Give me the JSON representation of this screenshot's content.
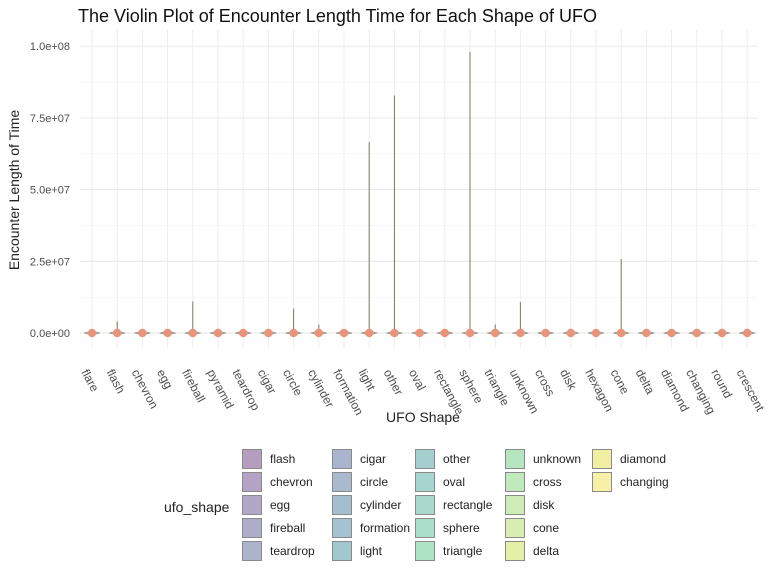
{
  "chart_data": {
    "type": "violin",
    "title": "The Violin Plot of Encounter Length Time for Each Shape of UFO",
    "xlabel": "UFO Shape",
    "ylabel": "Encounter Length of Time",
    "ylim": [
      -2000000,
      103000000
    ],
    "y_ticks": [
      {
        "value": 0,
        "label": "0.0e+00"
      },
      {
        "value": 25000000,
        "label": "2.5e+07"
      },
      {
        "value": 50000000,
        "label": "5.0e+07"
      },
      {
        "value": 75000000,
        "label": "7.5e+07"
      },
      {
        "value": 100000000,
        "label": "1.0e+08"
      }
    ],
    "grid": true,
    "categories": [
      "flare",
      "flash",
      "chevron",
      "egg",
      "fireball",
      "pyramid",
      "teardrop",
      "cigar",
      "circle",
      "cylinder",
      "formation",
      "light",
      "other",
      "oval",
      "rectangle",
      "sphere",
      "triangle",
      "unknown",
      "cross",
      "disk",
      "hexagon",
      "cone",
      "delta",
      "diamond",
      "changing",
      "round",
      "crescent"
    ],
    "max_values": [
      0,
      4000000,
      0,
      0,
      11000000,
      0,
      0,
      0,
      8500000,
      3000000,
      0,
      66500000,
      82800000,
      0,
      0,
      98000000,
      3000000,
      10800000,
      0,
      0,
      0,
      25800000,
      0,
      0,
      0,
      0,
      0
    ],
    "median_point_color": "#e8937a",
    "line_color": "#7a7a5a",
    "legend": {
      "title": "ufo_shape",
      "position": "bottom",
      "items": [
        {
          "label": "flash",
          "color": "#b59ebd"
        },
        {
          "label": "chevron",
          "color": "#b3a3c6"
        },
        {
          "label": "egg",
          "color": "#b1a7c8"
        },
        {
          "label": "fireball",
          "color": "#aeaccb"
        },
        {
          "label": "teardrop",
          "color": "#adb2cd"
        },
        {
          "label": "cigar",
          "color": "#aab5cd"
        },
        {
          "label": "circle",
          "color": "#a9b9ce"
        },
        {
          "label": "cylinder",
          "color": "#a5becf"
        },
        {
          "label": "formation",
          "color": "#a3c3d0"
        },
        {
          "label": "light",
          "color": "#a2c7cf"
        },
        {
          "label": "other",
          "color": "#a5cfcf"
        },
        {
          "label": "oval",
          "color": "#a6d4cf"
        },
        {
          "label": "rectangle",
          "color": "#a8d9cc"
        },
        {
          "label": "sphere",
          "color": "#aadfca"
        },
        {
          "label": "triangle",
          "color": "#aee3c6"
        },
        {
          "label": "unknown",
          "color": "#b6e6c1"
        },
        {
          "label": "cross",
          "color": "#c0e9bc"
        },
        {
          "label": "disk",
          "color": "#cdecb6"
        },
        {
          "label": "cone",
          "color": "#d9eeb0"
        },
        {
          "label": "delta",
          "color": "#e4f0a7"
        },
        {
          "label": "diamond",
          "color": "#f1f0a2"
        },
        {
          "label": "changing",
          "color": "#f8f0a6"
        }
      ]
    }
  }
}
